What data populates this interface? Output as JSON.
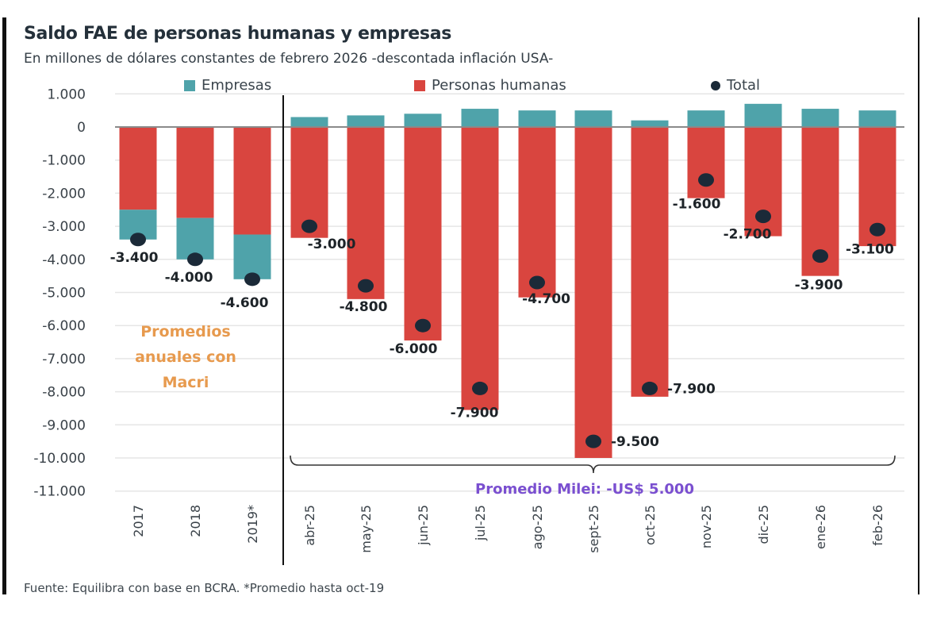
{
  "header": {
    "title": "Saldo FAE de personas humanas y empresas",
    "subtitle": "En millones de dólares constantes de febrero 2026 -descontada inflación USA-"
  },
  "legend": {
    "empresas": "Empresas",
    "personas": "Personas humanas",
    "total": "Total"
  },
  "footer": {
    "source": "Fuente: Equilibra con base en BCRA. *Promedio hasta oct-19"
  },
  "colors": {
    "empresas": "#4fa3aa",
    "personas": "#d9453f",
    "total": "#1b2a38",
    "macri_note": "#e79a4e",
    "milei_note": "#7a4fd0"
  },
  "chart_data": {
    "type": "bar",
    "stacked": true,
    "title": "Saldo FAE de personas humanas y empresas",
    "subtitle": "En millones de dólares constantes de febrero 2026 -descontada inflación USA-",
    "xlabel": "",
    "ylabel": "",
    "ylim": [
      -11000,
      1000
    ],
    "yticks": [
      1000,
      0,
      -1000,
      -2000,
      -3000,
      -4000,
      -5000,
      -6000,
      -7000,
      -8000,
      -9000,
      -10000,
      -11000
    ],
    "ytick_labels": [
      "1.000",
      "0",
      "-1.000",
      "-2.000",
      "-3.000",
      "-4.000",
      "-5.000",
      "-6.000",
      "-7.000",
      "-8.000",
      "-9.000",
      "-10.000",
      "-11.000"
    ],
    "grid": true,
    "legend_position": "top",
    "categories": [
      "2017",
      "2018",
      "2019*",
      "abr-25",
      "may-25",
      "jun-25",
      "jul-25",
      "ago-25",
      "sept-25",
      "oct-25",
      "nov-25",
      "dic-25",
      "ene-26",
      "feb-26"
    ],
    "series": [
      {
        "name": "Personas humanas",
        "values": [
          -2500,
          -2750,
          -3250,
          -3350,
          -5200,
          -6450,
          -8550,
          -5150,
          -10000,
          -8150,
          -2150,
          -3300,
          -4500,
          -3600
        ]
      },
      {
        "name": "Empresas",
        "values": [
          -900,
          -1250,
          -1350,
          300,
          350,
          400,
          550,
          500,
          500,
          200,
          500,
          700,
          550,
          500
        ]
      },
      {
        "name": "Total",
        "type": "point",
        "values": [
          -3400,
          -4000,
          -4600,
          -3000,
          -4800,
          -6000,
          -7900,
          -4700,
          -9500,
          -7900,
          -1600,
          -2700,
          -3900,
          -3100
        ]
      }
    ],
    "data_labels": [
      "-3.400",
      "-4.000",
      "-4.600",
      "-3.000",
      "-4.800",
      "-6.000",
      "-7.900",
      "-4.700",
      "-9.500",
      "-7.900",
      "-1.600",
      "-2.700",
      "-3.900",
      "-3.100"
    ],
    "annotations": {
      "macri": [
        "Promedios",
        "anuales con",
        "Macri"
      ],
      "milei": "Promedio Milei: -US$ 5.000"
    }
  }
}
